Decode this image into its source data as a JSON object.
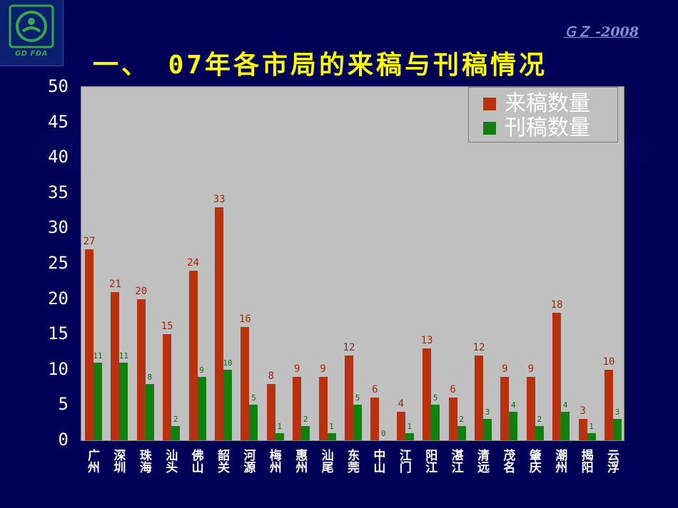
{
  "header": {
    "logo_text": "GD FDA",
    "watermark": "ＧＺ -2008",
    "title": "一、 07年各市局的来稿与刊稿情况"
  },
  "colors": {
    "background": "#000056",
    "plot_bg": "#c0c0c0",
    "series_submitted": "#b83210",
    "series_published": "#118011",
    "title": "#ffff00"
  },
  "chart_data": {
    "type": "bar",
    "title": "一、 07年各市局的来稿与刊稿情况",
    "xlabel": "",
    "ylabel": "",
    "ylim": [
      0,
      50
    ],
    "yticks": [
      0,
      5,
      10,
      15,
      20,
      25,
      30,
      35,
      40,
      45,
      50
    ],
    "grid": false,
    "legend_position": "top-right",
    "categories": [
      "广州",
      "深圳",
      "珠海",
      "汕头",
      "佛山",
      "韶关",
      "河源",
      "梅州",
      "惠州",
      "汕尾",
      "东莞",
      "中山",
      "江门",
      "阳江",
      "湛江",
      "清远",
      "茂名",
      "肇庆",
      "潮州",
      "揭阳",
      "云浮"
    ],
    "series": [
      {
        "name": "来稿数量",
        "values": [
          27,
          21,
          20,
          15,
          24,
          33,
          16,
          8,
          9,
          9,
          12,
          6,
          4,
          13,
          6,
          12,
          9,
          9,
          18,
          3,
          10
        ]
      },
      {
        "name": "刊稿数量",
        "values": [
          11,
          11,
          8,
          2,
          9,
          10,
          5,
          1,
          2,
          1,
          5,
          0,
          1,
          5,
          2,
          3,
          4,
          2,
          4,
          1,
          3
        ]
      }
    ]
  }
}
